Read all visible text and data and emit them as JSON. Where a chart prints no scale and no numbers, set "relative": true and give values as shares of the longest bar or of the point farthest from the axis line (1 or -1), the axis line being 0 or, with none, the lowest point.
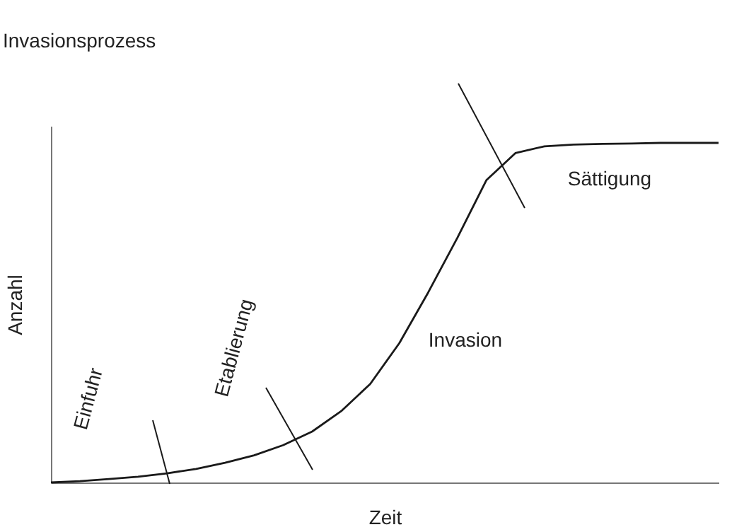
{
  "chart_data": {
    "type": "line",
    "relative": true,
    "title": "Invasionsprozess",
    "xlabel": "Zeit",
    "ylabel": "Anzahl",
    "categories": [
      null,
      null,
      null,
      null,
      null,
      null,
      null,
      null,
      null,
      null,
      null,
      null,
      null,
      null,
      null,
      null,
      null,
      null,
      null,
      null,
      null,
      null,
      null,
      null
    ],
    "series": [
      {
        "color": "#1a1a1a",
        "values": [
          0,
          0.004,
          0.01,
          0.017,
          0.027,
          0.04,
          0.058,
          0.08,
          0.11,
          0.15,
          0.21,
          0.29,
          0.41,
          0.56,
          0.72,
          0.89,
          0.97,
          0.99,
          0.995,
          0.997,
          0.998,
          1,
          1,
          1
        ]
      }
    ],
    "annotations": [
      "Einfuhr",
      "Etablierung",
      "Invasion",
      "Sättigung"
    ],
    "grid": false,
    "legend": false,
    "tick_labels": false,
    "marker": "none",
    "line_style": "solid"
  }
}
